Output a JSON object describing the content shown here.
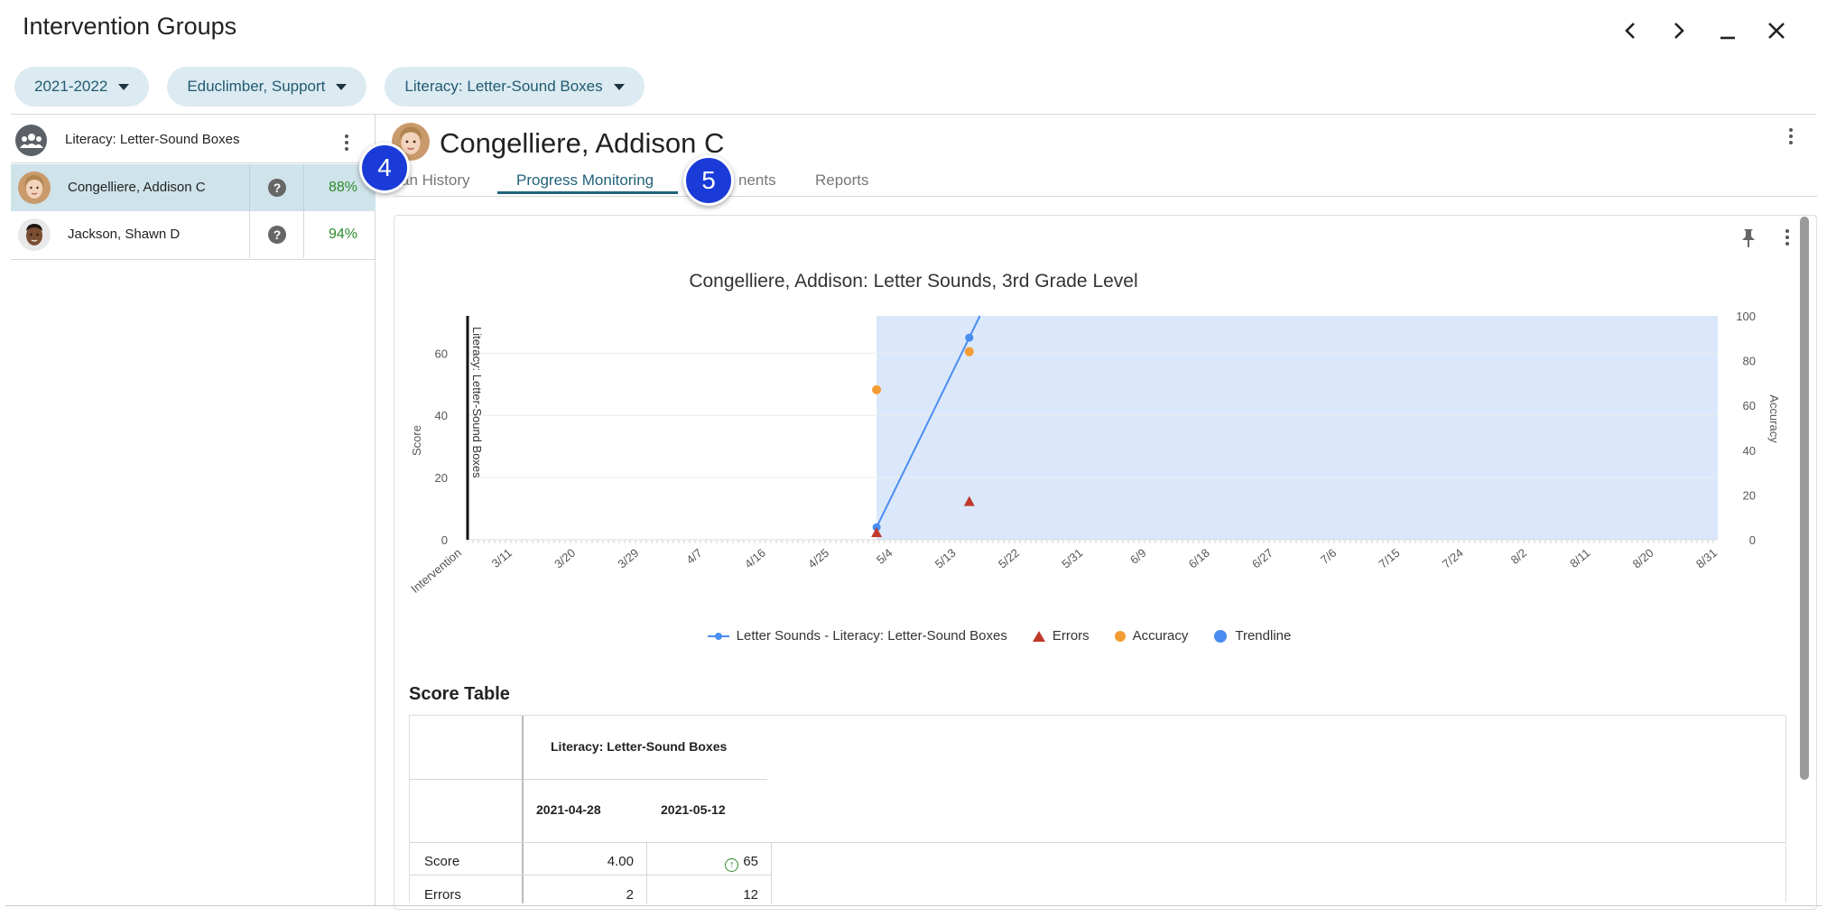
{
  "window": {
    "title": "Intervention Groups"
  },
  "filters": [
    {
      "label": "2021-2022"
    },
    {
      "label": "Educlimber, Support"
    },
    {
      "label": "Literacy: Letter-Sound Boxes"
    }
  ],
  "sidebar": {
    "group": {
      "label": "Literacy: Letter-Sound Boxes"
    },
    "students": [
      {
        "name": "Congelliere, Addison C",
        "percent": "88%",
        "selected": true
      },
      {
        "name": "Jackson, Shawn D",
        "percent": "94%",
        "selected": false
      }
    ]
  },
  "main": {
    "student_name": "Congelliere, Addison C",
    "tabs": [
      {
        "label": "an History"
      },
      {
        "label": "Progress Monitoring",
        "active": true
      },
      {
        "label": "nents"
      },
      {
        "label": "Reports"
      }
    ],
    "badges": [
      "4",
      "5"
    ]
  },
  "chart_data": {
    "type": "line",
    "title": "Congelliere, Addison: Letter Sounds, 3rd Grade Level",
    "ylabel": "Score",
    "y2label": "Accuracy",
    "ylim": [
      0,
      72
    ],
    "y2lim": [
      0,
      100
    ],
    "yticks": [
      0,
      20,
      40,
      60
    ],
    "y2ticks": [
      0,
      20,
      40,
      60,
      80,
      100
    ],
    "xticks": [
      "Intervention",
      "3/11",
      "3/20",
      "3/29",
      "4/7",
      "4/16",
      "4/25",
      "5/4",
      "5/13",
      "5/22",
      "5/31",
      "6/9",
      "6/18",
      "6/27",
      "7/6",
      "7/15",
      "7/24",
      "8/2",
      "8/11",
      "8/20",
      "8/31"
    ],
    "intervention_label": "Literacy: Letter-Sound Boxes",
    "series": [
      {
        "name": "Letter Sounds - Literacy: Letter-Sound Boxes",
        "x": [
          "2021-04-28",
          "2021-05-12"
        ],
        "values": [
          4,
          65
        ]
      },
      {
        "name": "Errors",
        "x": [
          "2021-04-28",
          "2021-05-12"
        ],
        "values": [
          2,
          12
        ]
      },
      {
        "name": "Accuracy",
        "x": [
          "2021-04-28",
          "2021-05-12"
        ],
        "values": [
          67,
          84
        ]
      },
      {
        "name": "Trendline"
      }
    ],
    "shaded_region": {
      "from": "2021-04-28",
      "to": "2021-08-31"
    }
  },
  "score_table": {
    "title": "Score Table",
    "group_header": "Literacy: Letter-Sound Boxes",
    "dates": [
      "2021-04-28",
      "2021-05-12"
    ],
    "rows": [
      {
        "label": "Score",
        "values": [
          "4.00",
          "65"
        ]
      },
      {
        "label": "Errors",
        "values": [
          "2",
          "12"
        ]
      }
    ]
  },
  "colors": {
    "accent": "#21627a",
    "pill_bg": "#dcebf1",
    "score_line": "#4a8df0",
    "errors": "#c0392b",
    "accuracy": "#f39c34",
    "shade": "#dbe8fb",
    "badge": "#1a3bd8"
  }
}
